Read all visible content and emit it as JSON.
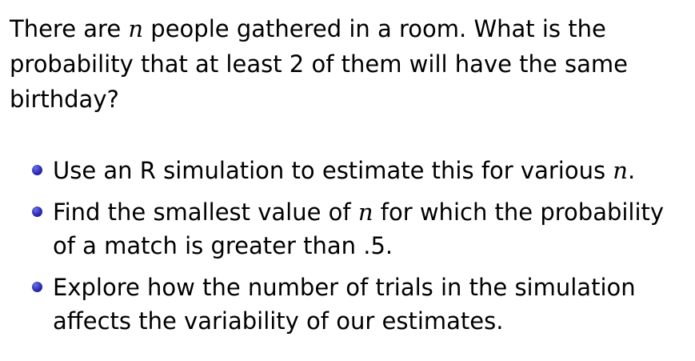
{
  "question": {
    "part1": "There are ",
    "var": "n",
    "part2": " people gathered in a room. What is the probability that at least 2 of them will have the same birthday?"
  },
  "bullets": [
    {
      "part1": "Use an R simulation to estimate this for various ",
      "var": "n",
      "part2": "."
    },
    {
      "part1": "Find the smallest value of ",
      "var": "n",
      "part2": " for which the probability of a match is greater than .5."
    },
    {
      "text": "Explore how the number of trials in the simulation affects the variability of our estimates."
    }
  ],
  "colors": {
    "bullet": "#2b2bb8",
    "text": "#000000",
    "background": "#ffffff"
  }
}
